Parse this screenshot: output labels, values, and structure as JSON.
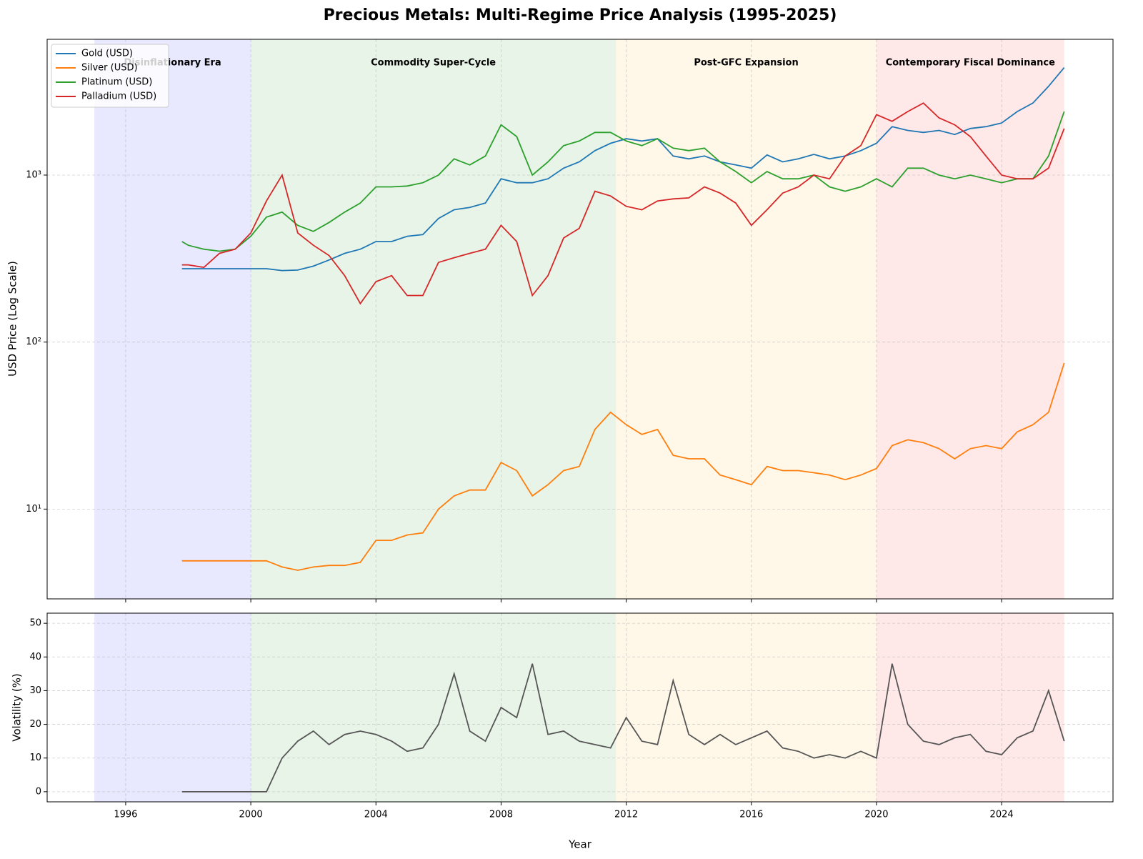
{
  "chart_data": [
    {
      "type": "line",
      "title": "Precious Metals: Multi-Regime Price Analysis (1995-2025)",
      "ylabel": "USD Price (Log Scale)",
      "log_y": true,
      "grid": true,
      "legend": "upper left",
      "xlim": [
        1993.49,
        2027.56
      ],
      "ylim": [
        2.9,
        6500
      ],
      "yticks": [
        {
          "value": 10,
          "label": "10¹"
        },
        {
          "value": 100,
          "label": "10²"
        },
        {
          "value": 1000,
          "label": "10³"
        }
      ],
      "regimes": [
        {
          "label": "Disinflationary Era",
          "start": 1995,
          "end": 2000,
          "color": "#0000ff"
        },
        {
          "label": "Commodity Super-Cycle",
          "start": 2000,
          "end": 2011.67,
          "color": "#008000"
        },
        {
          "label": "Post-GFC Expansion",
          "start": 2011.67,
          "end": 2020,
          "color": "#ffa500"
        },
        {
          "label": "Contemporary Fiscal Dominance",
          "start": 2020,
          "end": 2026,
          "color": "#ff0000"
        }
      ],
      "x": [
        1997.8,
        1998,
        1998.5,
        1999,
        1999.5,
        2000,
        2000.5,
        2001,
        2001.5,
        2002,
        2002.5,
        2003,
        2003.5,
        2004,
        2004.5,
        2005,
        2005.5,
        2006,
        2006.5,
        2007,
        2007.5,
        2008,
        2008.5,
        2009,
        2009.5,
        2010,
        2010.5,
        2011,
        2011.5,
        2012,
        2012.5,
        2013,
        2013.5,
        2014,
        2014.5,
        2015,
        2015.5,
        2016,
        2016.5,
        2017,
        2017.5,
        2018,
        2018.5,
        2019,
        2019.5,
        2020,
        2020.5,
        2021,
        2021.5,
        2022,
        2022.5,
        2023,
        2023.5,
        2024,
        2024.5,
        2025,
        2025.5,
        2026
      ],
      "series": [
        {
          "name": "Gold (USD)",
          "color": "#1f77b4",
          "values": [
            275,
            275,
            275,
            275,
            275,
            275,
            275,
            268,
            270,
            285,
            310,
            340,
            360,
            400,
            400,
            430,
            440,
            550,
            620,
            640,
            680,
            950,
            900,
            900,
            950,
            1100,
            1200,
            1400,
            1550,
            1650,
            1600,
            1650,
            1300,
            1250,
            1300,
            1200,
            1150,
            1100,
            1320,
            1200,
            1250,
            1330,
            1250,
            1300,
            1400,
            1550,
            1950,
            1850,
            1800,
            1850,
            1750,
            1900,
            1950,
            2050,
            2400,
            2700,
            3400,
            4400
          ]
        },
        {
          "name": "Silver (USD)",
          "color": "#ff7f0e",
          "values": [
            4.9,
            4.9,
            4.9,
            4.9,
            4.9,
            4.9,
            4.9,
            4.5,
            4.3,
            4.5,
            4.6,
            4.6,
            4.8,
            6.5,
            6.5,
            7.0,
            7.2,
            10,
            12,
            13,
            13,
            19,
            17,
            12,
            14,
            17,
            18,
            30,
            38,
            32,
            28,
            30,
            21,
            20,
            20,
            16,
            15,
            14,
            18,
            17,
            17,
            16.5,
            16,
            15,
            16,
            17.5,
            24,
            26,
            25,
            23,
            20,
            23,
            24,
            23,
            29,
            32,
            38,
            75
          ]
        },
        {
          "name": "Platinum (USD)",
          "color": "#2ca02c",
          "values": [
            400,
            380,
            360,
            350,
            360,
            430,
            560,
            600,
            500,
            460,
            520,
            600,
            680,
            850,
            850,
            860,
            900,
            1000,
            1250,
            1150,
            1300,
            2000,
            1700,
            1000,
            1200,
            1500,
            1600,
            1800,
            1800,
            1600,
            1500,
            1650,
            1450,
            1400,
            1450,
            1200,
            1050,
            900,
            1050,
            950,
            950,
            1000,
            850,
            800,
            850,
            950,
            850,
            1100,
            1100,
            1000,
            950,
            1000,
            950,
            900,
            950,
            950,
            1300,
            2400
          ]
        },
        {
          "name": "Palladium (USD)",
          "color": "#d62728",
          "values": [
            290,
            290,
            280,
            340,
            360,
            450,
            700,
            1000,
            450,
            380,
            330,
            250,
            170,
            230,
            250,
            190,
            190,
            300,
            320,
            340,
            360,
            500,
            400,
            190,
            250,
            420,
            480,
            800,
            750,
            650,
            620,
            700,
            720,
            730,
            850,
            780,
            680,
            500,
            620,
            780,
            850,
            1000,
            950,
            1300,
            1500,
            2300,
            2100,
            2400,
            2700,
            2200,
            2000,
            1700,
            1300,
            1000,
            950,
            950,
            1100,
            1900
          ]
        }
      ]
    },
    {
      "type": "line",
      "xlabel": "Year",
      "ylabel": "Volatility (%)",
      "grid": true,
      "xlim": [
        1993.49,
        2027.56
      ],
      "ylim": [
        -3,
        53
      ],
      "xticks": [
        1996,
        2000,
        2004,
        2008,
        2012,
        2016,
        2020,
        2024
      ],
      "yticks": [
        0,
        10,
        20,
        30,
        40,
        50
      ],
      "x": [
        1997.8,
        1998,
        1998.5,
        1999,
        1999.5,
        2000,
        2000.5,
        2001,
        2001.5,
        2002,
        2002.5,
        2003,
        2003.5,
        2004,
        2004.5,
        2005,
        2005.5,
        2006,
        2006.5,
        2007,
        2007.5,
        2008,
        2008.5,
        2009,
        2009.5,
        2010,
        2010.5,
        2011,
        2011.5,
        2012,
        2012.5,
        2013,
        2013.5,
        2014,
        2014.5,
        2015,
        2015.5,
        2016,
        2016.5,
        2017,
        2017.5,
        2018,
        2018.5,
        2019,
        2019.5,
        2020,
        2020.5,
        2021,
        2021.5,
        2022,
        2022.5,
        2023,
        2023.5,
        2024,
        2024.5,
        2025,
        2025.5,
        2026
      ],
      "color": "#555555",
      "values": [
        0,
        0,
        0,
        0,
        0,
        0,
        0,
        10,
        15,
        18,
        14,
        17,
        18,
        17,
        15,
        12,
        13,
        20,
        35,
        18,
        15,
        25,
        22,
        38,
        17,
        18,
        15,
        14,
        13,
        22,
        15,
        14,
        33,
        17,
        14,
        17,
        14,
        16,
        18,
        13,
        12,
        10,
        11,
        10,
        12,
        10,
        38,
        20,
        15,
        14,
        16,
        17,
        12,
        11,
        16,
        18,
        30,
        15
      ]
    }
  ]
}
